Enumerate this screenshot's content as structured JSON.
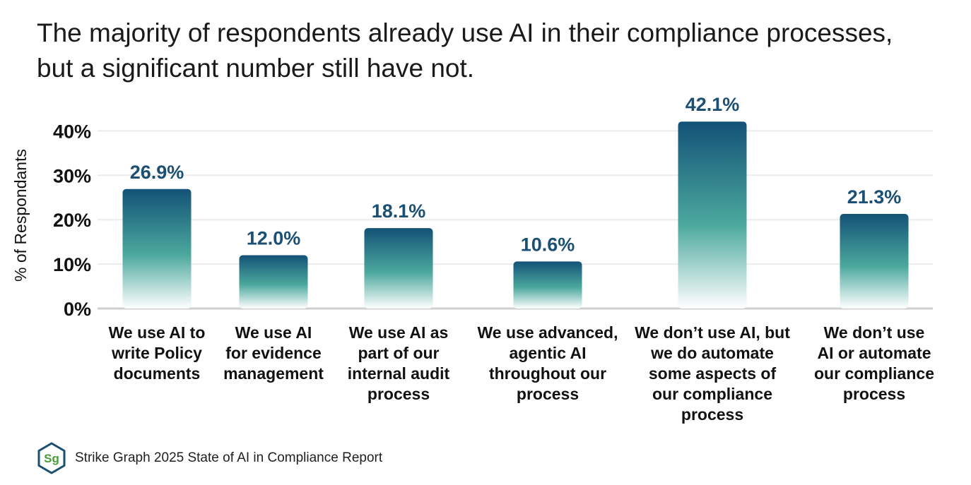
{
  "title": {
    "line1": "The majority of respondents already use AI in their compliance processes,",
    "line2": "but a significant number still have not."
  },
  "source": {
    "logo_text": "Sg",
    "text": "Strike Graph 2025 State of AI in Compliance Report"
  },
  "colors": {
    "bar_top": "#135277",
    "bar_mid": "#4ba89d",
    "bar_bottom": "#ffffff",
    "value_label": "#1b4f74",
    "gridline": "#ececec",
    "axis": "#cfcfcf",
    "text": "#111111",
    "logo_hex": "#1b4f74",
    "logo_text": "#4a9a3a"
  },
  "chart_data": {
    "type": "bar",
    "ylabel": "% of Respondants",
    "xlabel": "",
    "ylim": [
      0,
      45
    ],
    "yticks": [
      0,
      10,
      20,
      30,
      40
    ],
    "ytick_labels": [
      "0%",
      "10%",
      "20%",
      "30%",
      "40%"
    ],
    "grid": true,
    "categories": [
      [
        "We use AI to",
        "write Policy",
        "documents"
      ],
      [
        "We use AI",
        "for evidence",
        "management"
      ],
      [
        "We use AI as",
        "part of our",
        "internal audit",
        "process"
      ],
      [
        "We use advanced,",
        "agentic AI",
        "throughout our",
        "process"
      ],
      [
        "We don’t use AI, but",
        "we do automate",
        "some aspects of",
        "our compliance",
        "process"
      ],
      [
        "We don’t use",
        "AI or automate",
        "our compliance",
        "process"
      ]
    ],
    "values": [
      26.9,
      12.0,
      18.1,
      10.6,
      42.1,
      21.3
    ],
    "value_labels": [
      "26.9%",
      "12.0%",
      "18.1%",
      "10.6%",
      "42.1%",
      "21.3%"
    ]
  }
}
